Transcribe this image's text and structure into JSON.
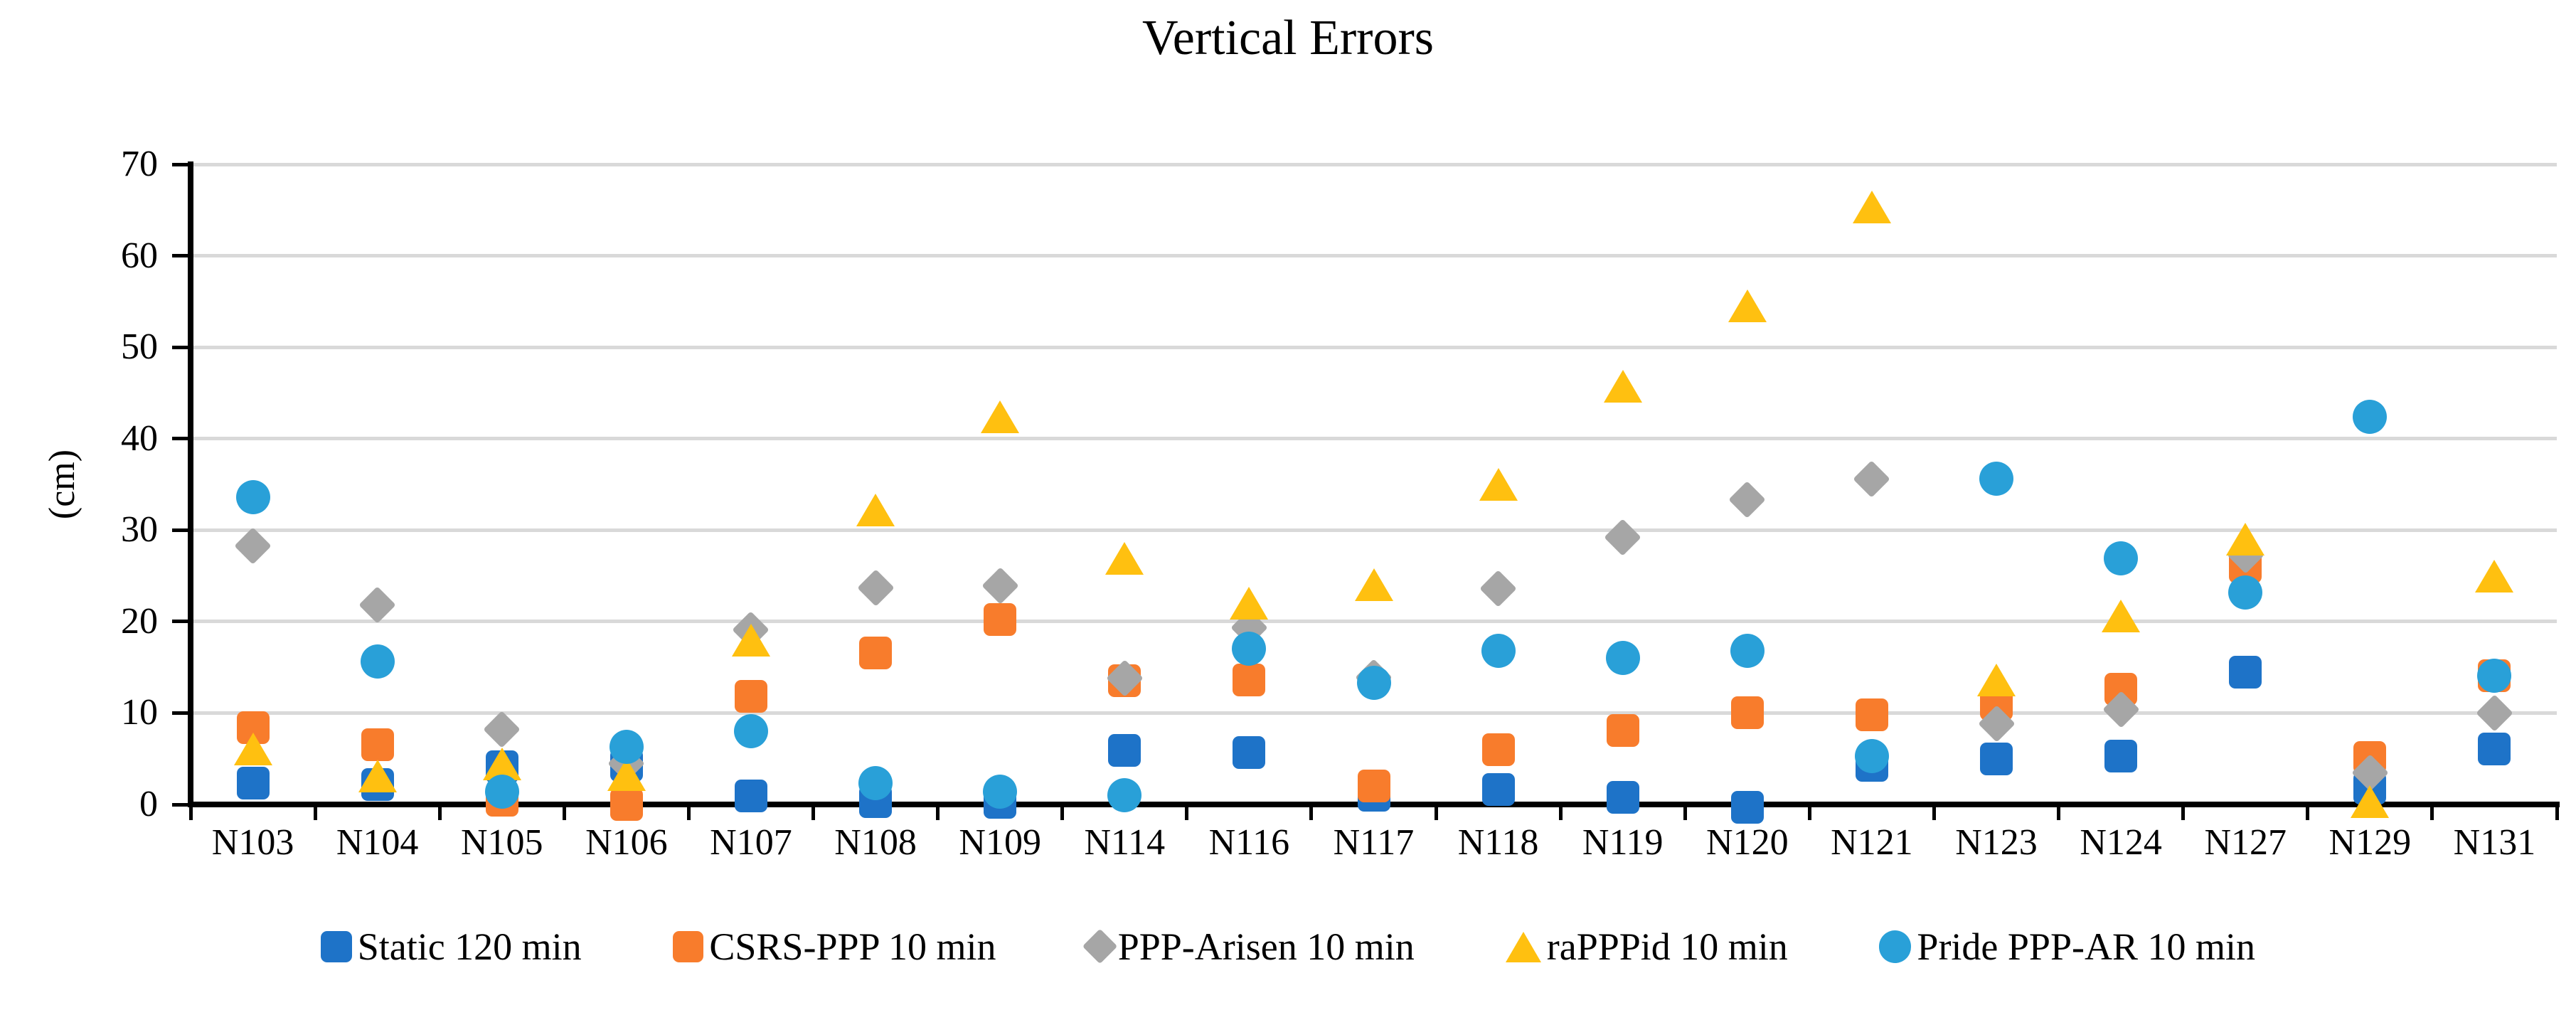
{
  "chart_data": {
    "type": "scatter",
    "title": "Vertical Errors",
    "ylabel": "(cm)",
    "xlabel": "",
    "ylim": [
      0,
      70
    ],
    "ytick_step": 10,
    "yticks": [
      0,
      10,
      20,
      30,
      40,
      50,
      60,
      70
    ],
    "grid": true,
    "legend_position": "bottom",
    "categories": [
      "N103",
      "N104",
      "N105",
      "N106",
      "N107",
      "N108",
      "N109",
      "N114",
      "N116",
      "N117",
      "N118",
      "N119",
      "N120",
      "N121",
      "N123",
      "N124",
      "N127",
      "N129",
      "N131"
    ],
    "series": [
      {
        "name": "Static 120 min",
        "marker": "square",
        "color": "#1e73c8",
        "values": [
          2.3,
          2.2,
          4.1,
          4.3,
          0.9,
          0.3,
          0.2,
          5.9,
          5.7,
          1.0,
          1.6,
          0.8,
          -0.3,
          4.3,
          5.0,
          5.3,
          14.5,
          1.8,
          6.1
        ]
      },
      {
        "name": "CSRS-PPP 10 min",
        "marker": "square",
        "color": "#f87c2c",
        "values": [
          8.4,
          6.5,
          0.5,
          0.0,
          11.8,
          16.6,
          20.2,
          13.5,
          13.6,
          2.0,
          6.0,
          8.1,
          10.0,
          9.8,
          11.0,
          12.6,
          26.0,
          5.1,
          14.1
        ]
      },
      {
        "name": "PPP-Arisen 10 min",
        "marker": "diamond",
        "color": "#a6a6a6",
        "values": [
          28.3,
          21.8,
          8.2,
          4.5,
          19.1,
          23.7,
          23.9,
          13.8,
          19.3,
          13.9,
          23.6,
          29.2,
          33.3,
          35.6,
          8.8,
          10.4,
          27.3,
          3.5,
          10.0
        ]
      },
      {
        "name": "raPPPid 10 min",
        "marker": "triangle",
        "color": "#ffc010",
        "values": [
          6.1,
          3.1,
          4.4,
          3.3,
          18.0,
          32.2,
          42.4,
          26.9,
          22.0,
          24.0,
          35.0,
          45.7,
          54.5,
          65.3,
          13.6,
          20.6,
          29.0,
          0.3,
          25.0
        ]
      },
      {
        "name": "Pride PPP-AR 10 min",
        "marker": "circle",
        "color": "#29a0d8",
        "values": [
          33.6,
          15.6,
          1.4,
          6.3,
          8.0,
          2.3,
          1.4,
          1.0,
          17.0,
          13.3,
          16.8,
          16.0,
          16.8,
          5.3,
          35.6,
          26.9,
          23.2,
          42.4,
          14.1
        ]
      }
    ],
    "colors": {
      "gridline": "#d9d9d9",
      "axis": "#000000",
      "text": "#000000"
    }
  }
}
